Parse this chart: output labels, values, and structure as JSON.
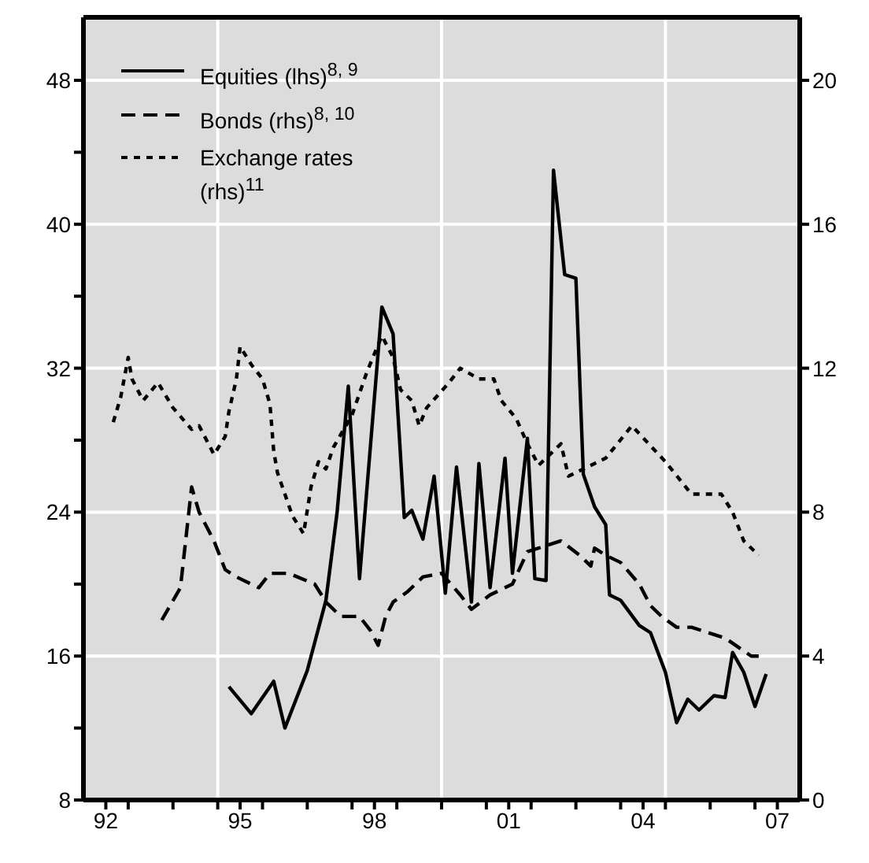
{
  "chart_data": {
    "type": "line",
    "xlim": [
      "1992",
      "2008"
    ],
    "xticks": [
      {
        "value": "1992-07",
        "label": "92"
      },
      {
        "value": "1993",
        "label": null
      },
      {
        "value": "1994",
        "label": null
      },
      {
        "value": "1995",
        "label": null
      },
      {
        "value": "1995-07",
        "label": "95"
      },
      {
        "value": "1996",
        "label": null
      },
      {
        "value": "1997",
        "label": null
      },
      {
        "value": "1998",
        "label": null
      },
      {
        "value": "1998-07",
        "label": "98"
      },
      {
        "value": "1999",
        "label": null
      },
      {
        "value": "2000",
        "label": null
      },
      {
        "value": "2001",
        "label": null
      },
      {
        "value": "2001-07",
        "label": "01"
      },
      {
        "value": "2002",
        "label": null
      },
      {
        "value": "2003",
        "label": null
      },
      {
        "value": "2004",
        "label": null
      },
      {
        "value": "2004-07",
        "label": "04"
      },
      {
        "value": "2005",
        "label": null
      },
      {
        "value": "2006",
        "label": null
      },
      {
        "value": "2007",
        "label": null
      },
      {
        "value": "2007-07",
        "label": "07"
      }
    ],
    "ylim": [
      8,
      51.5
    ],
    "yticks": [
      8,
      {
        "value": 12,
        "label": null
      },
      16,
      {
        "value": 20,
        "label": null
      },
      24,
      {
        "value": 28,
        "label": null
      },
      32,
      {
        "value": 36,
        "label": null
      },
      40,
      {
        "value": 44,
        "label": null
      },
      48
    ],
    "y2lim": [
      0,
      21.75
    ],
    "y2ticks": [
      0,
      4,
      8,
      12,
      16,
      20
    ],
    "grid": "y",
    "legend": "top left",
    "marker": "none",
    "ref_lines": [
      {
        "axis": "x",
        "value": "1995",
        "label": null,
        "color": "#ffffff"
      },
      {
        "axis": "x",
        "value": "2000",
        "label": null,
        "color": "#ffffff"
      },
      {
        "axis": "x",
        "value": "2005",
        "label": null,
        "color": "#ffffff"
      }
    ],
    "series": [
      {
        "name": "Equities (lhs)$^{8, 9}$",
        "color": "#000000",
        "line_style": "solid",
        "x": [
          "1995-04",
          "1995-10",
          "1996-04",
          "1996-07",
          "1997-01",
          "1997-06",
          "1997-09",
          "1997-12",
          "1998-03",
          "1998-09",
          "1998-12",
          "1999-03",
          "1999-05",
          "1999-08",
          "1999-11",
          "2000-02",
          "2000-05",
          "2000-09",
          "2000-11",
          "2001-02",
          "2001-06",
          "2001-08",
          "2001-12",
          "2002-02",
          "2002-05",
          "2002-07",
          "2002-10",
          "2003-01",
          "2003-03",
          "2003-06",
          "2003-09",
          "2003-10",
          "2004-01",
          "2004-06",
          "2004-09",
          "2005-01",
          "2005-04",
          "2005-07",
          "2005-10",
          "2006-02",
          "2006-05",
          "2006-07",
          "2006-10",
          "2007-01",
          "2007-04"
        ],
        "values": [
          14.3,
          12.8,
          14.6,
          12.0,
          15.2,
          19.1,
          24,
          31.0,
          20.3,
          35.4,
          33.9,
          23.7,
          24.1,
          22.5,
          26,
          19.5,
          26.5,
          19,
          26.7,
          19.8,
          27,
          20.6,
          28.1,
          20.3,
          20.2,
          43,
          37.2,
          37.0,
          26.1,
          24.3,
          23.3,
          19.4,
          19.1,
          17.7,
          17.3,
          15.1,
          12.3,
          13.6,
          13.0,
          13.8,
          13.7,
          16.2,
          15.1,
          13.2,
          15.0
        ]
      },
      {
        "name": "Bonds (rhs)$^{8, 10}$",
        "color": "#000000",
        "line_style": "dashed",
        "axis": "y2",
        "x": [
          "1993-10",
          "1994-03",
          "1994-06",
          "1994-08",
          "1994-12",
          "1995-03",
          "1995-06",
          "1995-12",
          "1996-03",
          "1996-08",
          "1997-03",
          "1997-06",
          "1997-10",
          "1998-03",
          "1998-06",
          "1998-08",
          "1998-10",
          "1998-12",
          "1999-04",
          "1999-08",
          "2000-01",
          "2000-06",
          "2000-09",
          "2001-02",
          "2001-08",
          "2001-12",
          "2002-09",
          "2003-02",
          "2003-05",
          "2003-06",
          "2003-09",
          "2004-01",
          "2004-06",
          "2004-09",
          "2004-12",
          "2005-04",
          "2005-08",
          "2006-05",
          "2006-12",
          "2007-02"
        ],
        "values": [
          5.0,
          5.9,
          8.7,
          8.0,
          7.2,
          6.4,
          6.2,
          5.9,
          6.3,
          6.3,
          6.0,
          5.5,
          5.1,
          5.1,
          4.7,
          4.3,
          5.1,
          5.5,
          5.8,
          6.2,
          6.3,
          5.7,
          5.3,
          5.7,
          6.0,
          6.9,
          7.2,
          6.8,
          6.5,
          7.0,
          6.8,
          6.6,
          6.0,
          5.4,
          5.1,
          4.8,
          4.8,
          4.5,
          4.0,
          4.0
        ]
      },
      {
        "name": "Exchange rates (rhs)$^{11}$",
        "color": "#000000",
        "line_style": "dotted",
        "axis": "y2",
        "x": [
          "1992-09",
          "1992-11",
          "1993-01",
          "1993-02",
          "1993-05",
          "1993-09",
          "1994-01",
          "1994-06",
          "1994-08",
          "1994-12",
          "1995-03",
          "1995-04",
          "1995-06",
          "1995-07",
          "1995-10",
          "1996-01",
          "1996-03",
          "1996-04",
          "1996-05",
          "1996-07",
          "1996-09",
          "1996-12",
          "1997-02",
          "1997-04",
          "1997-06",
          "1997-08",
          "1998-01",
          "1998-05",
          "1998-09",
          "1998-12",
          "1999-02",
          "1999-05",
          "1999-07",
          "1999-09",
          "2000-03",
          "2000-06",
          "2000-11",
          "2001-03",
          "2001-05",
          "2001-09",
          "2001-12",
          "2002-03",
          "2002-09",
          "2002-11",
          "2003-09",
          "2004-04",
          "2005-01",
          "2005-08",
          "2006-04",
          "2006-07",
          "2006-10",
          "2007-02"
        ],
        "values": [
          10.5,
          11.2,
          12.3,
          11.7,
          11.1,
          11.6,
          10.9,
          10.3,
          10.4,
          9.6,
          10.1,
          10.8,
          11.7,
          12.6,
          12.1,
          11.7,
          11.0,
          9.7,
          9.1,
          8.5,
          7.9,
          7.4,
          8.7,
          9.4,
          9.2,
          9.8,
          10.7,
          11.9,
          12.9,
          12.3,
          11.4,
          11.1,
          10.4,
          10.9,
          11.6,
          12.0,
          11.7,
          11.7,
          11.1,
          10.6,
          9.9,
          9.3,
          9.9,
          9.0,
          9.5,
          10.4,
          9.4,
          8.5,
          8.5,
          8.0,
          7.2,
          6.8
        ]
      }
    ]
  }
}
